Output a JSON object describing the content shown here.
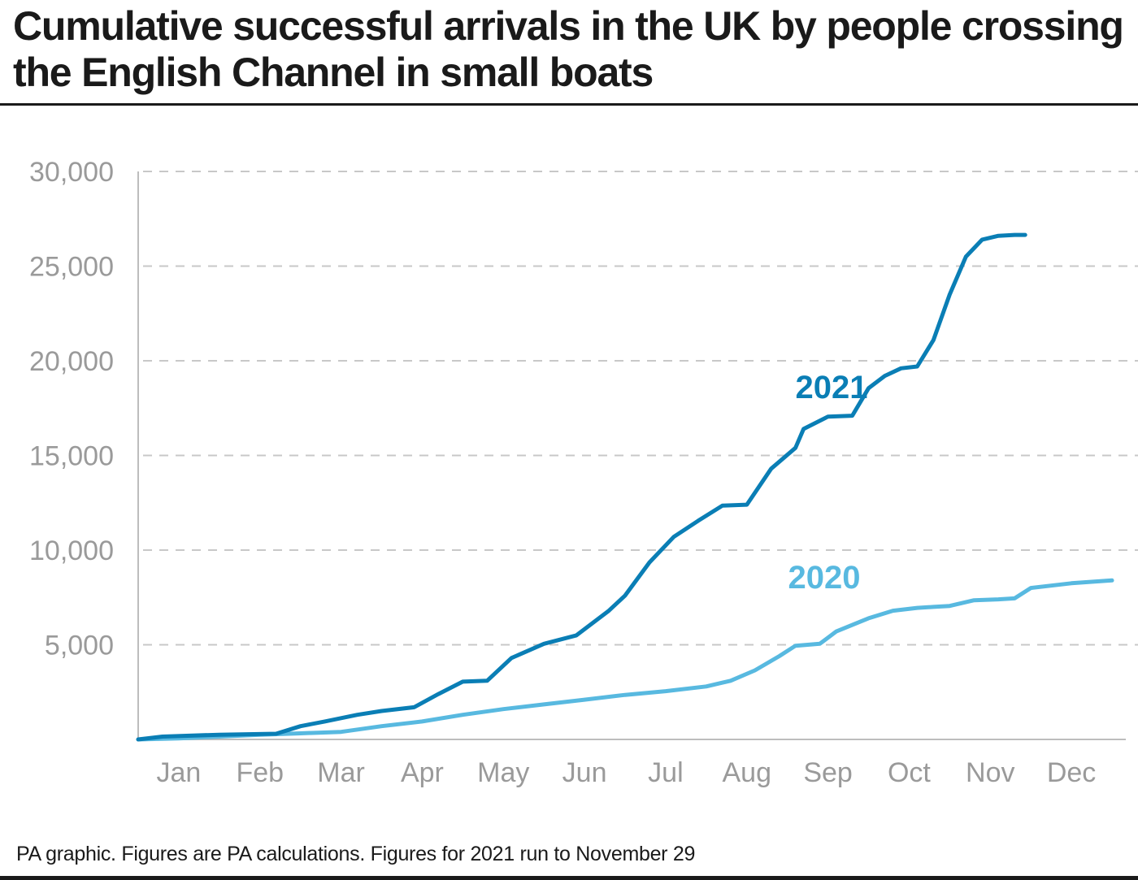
{
  "title": "Cumulative successful arrivals in the UK by people crossing the English Channel in small boats",
  "source": "PA graphic. Figures are PA calculations. Figures for 2021 run to November 29",
  "colors": {
    "series_2021": "#0a7eb5",
    "series_2020": "#58b9e0",
    "grid": "#c8c8c8",
    "axis": "#bdbdbd",
    "text": "#1a1a1a",
    "tick": "#9a9a9a"
  },
  "chart_data": {
    "type": "line",
    "title": "Cumulative successful arrivals in the UK by people crossing the English Channel in small boats",
    "xlabel": "",
    "ylabel": "",
    "x_unit": "month (0 = 1 Jan, 12 = 31 Dec)",
    "xlim": [
      0,
      12
    ],
    "ylim": [
      0,
      30000
    ],
    "y_ticks": [
      {
        "value": 5000,
        "label": "5,000"
      },
      {
        "value": 10000,
        "label": "10,000"
      },
      {
        "value": 15000,
        "label": "15,000"
      },
      {
        "value": 20000,
        "label": "20,000"
      },
      {
        "value": 25000,
        "label": "25,000"
      },
      {
        "value": 30000,
        "label": "30,000"
      }
    ],
    "categories": [
      "Jan",
      "Feb",
      "Mar",
      "Apr",
      "May",
      "Jun",
      "Jul",
      "Aug",
      "Sep",
      "Oct",
      "Nov",
      "Dec"
    ],
    "grid": true,
    "series": [
      {
        "name": "2021",
        "label": "2021",
        "x": [
          0,
          0.3,
          1.0,
          1.7,
          2.0,
          2.3,
          2.7,
          3.0,
          3.4,
          3.7,
          4.0,
          4.3,
          4.6,
          5.0,
          5.4,
          5.8,
          6.0,
          6.3,
          6.6,
          6.9,
          7.2,
          7.5,
          7.8,
          8.1,
          8.2,
          8.5,
          8.8,
          9.0,
          9.2,
          9.4,
          9.6,
          9.8,
          10.0,
          10.2,
          10.4,
          10.6,
          10.8,
          10.93
        ],
        "values": [
          0,
          150,
          250,
          300,
          700,
          950,
          1300,
          1500,
          1700,
          2400,
          3050,
          3100,
          4300,
          5050,
          5500,
          6800,
          7600,
          9350,
          10700,
          11550,
          12350,
          12400,
          14300,
          15400,
          16400,
          17050,
          17100,
          18550,
          19200,
          19600,
          19700,
          21100,
          23500,
          25500,
          26400,
          26600,
          26650,
          26650
        ]
      },
      {
        "name": "2020",
        "label": "2020",
        "x": [
          0,
          0.5,
          1.0,
          1.5,
          2.0,
          2.5,
          3.0,
          3.5,
          4.0,
          4.5,
          5.0,
          5.5,
          6.0,
          6.5,
          7.0,
          7.3,
          7.6,
          7.9,
          8.1,
          8.4,
          8.6,
          9.0,
          9.3,
          9.6,
          9.8,
          10.0,
          10.3,
          10.6,
          10.8,
          11.0,
          11.5,
          12.0
        ],
        "values": [
          0,
          50,
          150,
          250,
          320,
          400,
          700,
          950,
          1300,
          1600,
          1850,
          2100,
          2350,
          2550,
          2800,
          3100,
          3650,
          4400,
          4950,
          5050,
          5700,
          6400,
          6800,
          6950,
          7000,
          7050,
          7350,
          7400,
          7450,
          8000,
          8250,
          8400
        ]
      }
    ]
  }
}
